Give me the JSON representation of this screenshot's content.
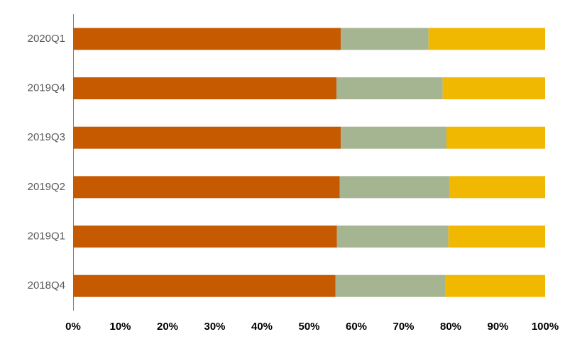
{
  "chart_data": {
    "type": "stacked-bar-horizontal-100",
    "categories": [
      "2020Q1",
      "2019Q4",
      "2019Q3",
      "2019Q2",
      "2019Q1",
      "2018Q4"
    ],
    "series": [
      {
        "color": "#c55a00",
        "values": [
          56.7,
          55.8,
          56.7,
          56.5,
          55.9,
          55.6
        ]
      },
      {
        "color": "#a5b592",
        "values": [
          18.6,
          22.5,
          22.4,
          23.3,
          23.6,
          23.2
        ]
      },
      {
        "color": "#f0b800",
        "values": [
          24.7,
          21.7,
          20.9,
          20.2,
          20.5,
          21.2
        ]
      }
    ],
    "xlim": [
      0,
      100
    ],
    "xticks": [
      {
        "value": 0,
        "label": "0%"
      },
      {
        "value": 10,
        "label": "10%"
      },
      {
        "value": 20,
        "label": "20%"
      },
      {
        "value": 30,
        "label": "30%"
      },
      {
        "value": 40,
        "label": "40%"
      },
      {
        "value": 50,
        "label": "50%"
      },
      {
        "value": 60,
        "label": "60%"
      },
      {
        "value": 70,
        "label": "70%"
      },
      {
        "value": 80,
        "label": "80%"
      },
      {
        "value": 90,
        "label": "90%"
      },
      {
        "value": 100,
        "label": "100%"
      }
    ]
  }
}
